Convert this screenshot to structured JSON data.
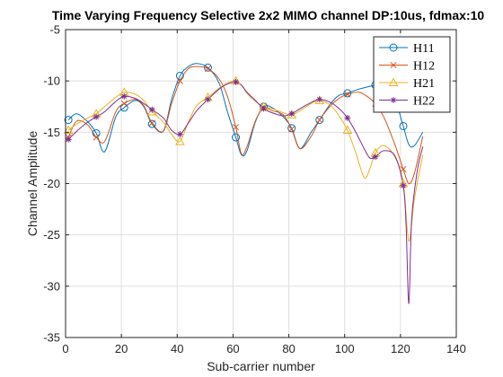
{
  "chart_data": {
    "type": "line",
    "title": "Time Varying Frequency Selective 2x2 MIMO channel DP:10us, fdmax:10",
    "xlabel": "Sub-carrier number",
    "ylabel": "Channel Amplitude",
    "xlim": [
      0,
      140
    ],
    "ylim": [
      -35,
      -5
    ],
    "xticks": [
      0,
      20,
      40,
      60,
      80,
      100,
      120,
      140
    ],
    "yticks": [
      -35,
      -30,
      -25,
      -20,
      -15,
      -10,
      -5
    ],
    "grid": true,
    "legend_position": "top-right",
    "marker_x": [
      1,
      11,
      21,
      31,
      41,
      51,
      61,
      71,
      81,
      91,
      101,
      111,
      121
    ],
    "series": [
      {
        "name": "H11",
        "color": "#0072BD",
        "marker": "circle",
        "x": [
          1,
          4,
          8,
          11,
          14,
          18,
          21,
          25,
          28,
          31,
          35,
          38,
          41,
          44,
          47,
          51,
          55,
          58,
          61,
          63,
          65,
          68,
          71,
          74,
          78,
          81,
          84,
          88,
          91,
          95,
          98,
          101,
          105,
          108,
          111,
          114,
          118,
          121,
          123,
          125,
          128
        ],
        "y": [
          -13.8,
          -13.2,
          -14.0,
          -15.1,
          -16.9,
          -13.5,
          -12.6,
          -11.9,
          -12.5,
          -14.2,
          -14.9,
          -11.8,
          -9.5,
          -8.6,
          -8.3,
          -8.7,
          -10.2,
          -13.0,
          -15.5,
          -17.2,
          -16.8,
          -14.0,
          -12.5,
          -12.6,
          -13.5,
          -14.6,
          -16.6,
          -15.0,
          -13.8,
          -12.2,
          -11.4,
          -11.2,
          -10.8,
          -10.6,
          -10.4,
          -10.2,
          -11.8,
          -14.4,
          -16.2,
          -16.3,
          -15.0
        ]
      },
      {
        "name": "H12",
        "color": "#D95319",
        "marker": "x",
        "x": [
          1,
          4,
          8,
          11,
          14,
          18,
          21,
          25,
          28,
          31,
          35,
          38,
          41,
          44,
          47,
          51,
          55,
          58,
          61,
          63,
          65,
          68,
          71,
          74,
          78,
          81,
          84,
          88,
          91,
          95,
          98,
          101,
          105,
          108,
          111,
          114,
          118,
          121,
          123,
          125,
          128
        ],
        "y": [
          -15.5,
          -13.9,
          -14.3,
          -15.5,
          -15.9,
          -13.0,
          -12.2,
          -11.8,
          -12.4,
          -14.1,
          -14.9,
          -12.2,
          -10.0,
          -8.8,
          -8.6,
          -8.8,
          -9.8,
          -11.5,
          -14.5,
          -17.1,
          -16.4,
          -13.9,
          -12.6,
          -12.9,
          -13.3,
          -14.7,
          -16.6,
          -15.4,
          -13.8,
          -12.4,
          -11.7,
          -11.3,
          -11.1,
          -11.5,
          -12.2,
          -13.5,
          -16.2,
          -18.6,
          -20.0,
          -19.0,
          -15.4
        ]
      },
      {
        "name": "H21",
        "color": "#EDB120",
        "marker": "triangle",
        "x": [
          1,
          4,
          8,
          11,
          14,
          18,
          21,
          25,
          28,
          31,
          35,
          38,
          41,
          44,
          47,
          51,
          55,
          58,
          61,
          63,
          65,
          68,
          71,
          74,
          78,
          81,
          84,
          88,
          91,
          95,
          98,
          101,
          104,
          107,
          109,
          111,
          114,
          118,
          121,
          123,
          125,
          128
        ],
        "y": [
          -14.8,
          -14.2,
          -13.6,
          -13.2,
          -12.5,
          -11.6,
          -11.1,
          -11.3,
          -11.9,
          -13.0,
          -14.0,
          -15.2,
          -15.9,
          -14.0,
          -12.4,
          -11.6,
          -10.7,
          -10.2,
          -10.0,
          -10.4,
          -11.2,
          -12.0,
          -12.5,
          -12.7,
          -13.1,
          -13.3,
          -12.9,
          -12.2,
          -11.9,
          -12.4,
          -13.4,
          -14.8,
          -17.0,
          -19.4,
          -18.6,
          -17.0,
          -16.3,
          -17.4,
          -20.0,
          -25.6,
          -21.5,
          -17.2
        ]
      },
      {
        "name": "H22",
        "color": "#7E2F8E",
        "marker": "star",
        "x": [
          1,
          4,
          8,
          11,
          14,
          18,
          21,
          25,
          28,
          31,
          35,
          38,
          41,
          44,
          47,
          51,
          55,
          58,
          61,
          63,
          65,
          68,
          71,
          74,
          78,
          81,
          84,
          88,
          91,
          95,
          98,
          101,
          104,
          107,
          109,
          111,
          114,
          118,
          121,
          122,
          123,
          124,
          126,
          128
        ],
        "y": [
          -15.7,
          -14.9,
          -14.0,
          -13.5,
          -13.0,
          -12.0,
          -11.5,
          -11.7,
          -12.2,
          -12.8,
          -13.6,
          -14.8,
          -15.2,
          -14.1,
          -12.9,
          -11.8,
          -10.8,
          -10.3,
          -10.1,
          -10.4,
          -11.1,
          -11.9,
          -12.7,
          -13.1,
          -13.4,
          -13.2,
          -12.7,
          -12.1,
          -11.8,
          -12.1,
          -12.7,
          -13.6,
          -15.0,
          -16.6,
          -17.5,
          -17.4,
          -16.8,
          -17.3,
          -20.2,
          -24.0,
          -31.7,
          -23.5,
          -18.8,
          -16.4
        ]
      }
    ]
  }
}
